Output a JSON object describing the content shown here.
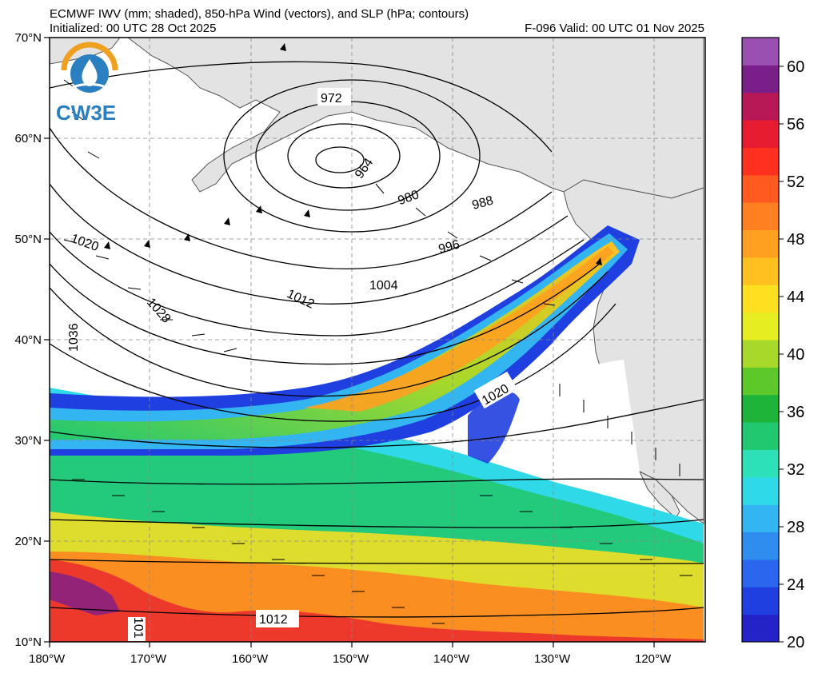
{
  "header": {
    "title": "ECMWF IWV (mm; shaded), 850-hPa Wind (vectors), and SLP (hPa; contours)",
    "initialized": "Initialized: 00 UTC 28 Oct 2025",
    "valid": "F-096  Valid: 00 UTC 01 Nov 2025"
  },
  "logo": {
    "text": "CW3E"
  },
  "axes": {
    "lon_labels": [
      "180°W",
      "170°W",
      "160°W",
      "150°W",
      "140°W",
      "130°W",
      "120°W"
    ],
    "lat_labels": [
      "70°N",
      "60°N",
      "50°N",
      "40°N",
      "30°N",
      "20°N",
      "10°N"
    ]
  },
  "colorbar": {
    "labels": [
      "60",
      "56",
      "52",
      "48",
      "44",
      "40",
      "36",
      "32",
      "28",
      "24",
      "20"
    ],
    "min": 20,
    "max": 62,
    "step": 2,
    "colors": [
      "#2323c8",
      "#1f3fe0",
      "#2a66ee",
      "#2f8df0",
      "#33b5f2",
      "#2fd9e8",
      "#2ee0b8",
      "#22c870",
      "#1eb43a",
      "#5cc82a",
      "#a8d82a",
      "#e6ee20",
      "#ffe020",
      "#ffc020",
      "#ffa020",
      "#ff8020",
      "#ff5a20",
      "#ff3020",
      "#e81c30",
      "#b81856",
      "#7a1e8a",
      "#9a50b0"
    ]
  },
  "contour_labels": [
    "972",
    "964",
    "980",
    "988",
    "996",
    "1004",
    "1012",
    "1020",
    "1028",
    "1036",
    "1020",
    "1012",
    "101"
  ],
  "colors": {
    "land": "#e3e3e3",
    "ocean": "#ffffff",
    "contour": "#000000",
    "grid": "#888888"
  }
}
